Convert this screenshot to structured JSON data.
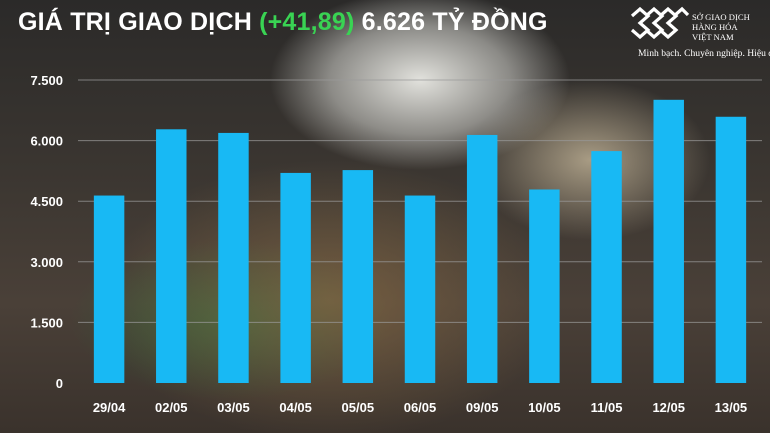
{
  "header": {
    "title_prefix": "GIÁ TRỊ GIAO DỊCH ",
    "change": "(+41,89)",
    "title_suffix": " 6.626 TỶ ĐỒNG"
  },
  "logo": {
    "org_line1": "SỞ GIAO DỊCH",
    "org_line2": "HÀNG HÓA",
    "org_line3": "VIỆT NAM",
    "slogan": "Minh bạch. Chuyên nghiệp. Hiệu quả"
  },
  "colors": {
    "bar": "#18b9f4",
    "change": "#39d353",
    "text": "#ffffff",
    "grid": "#9a9a9a"
  },
  "chart_data": {
    "type": "bar",
    "categories": [
      "29/04",
      "02/05",
      "03/05",
      "04/05",
      "05/05",
      "06/05",
      "09/05",
      "10/05",
      "11/05",
      "12/05",
      "13/05"
    ],
    "values": [
      4640,
      6280,
      6190,
      5200,
      5270,
      4640,
      6140,
      4790,
      5740,
      7010,
      6590
    ],
    "ylim": [
      0,
      7500
    ],
    "yticks": [
      0,
      1500,
      3000,
      4500,
      6000,
      7500
    ],
    "ytick_labels": [
      "0",
      "1.500",
      "3.000",
      "4.500",
      "6.000",
      "7.500"
    ],
    "grid": true,
    "legend": "none"
  }
}
